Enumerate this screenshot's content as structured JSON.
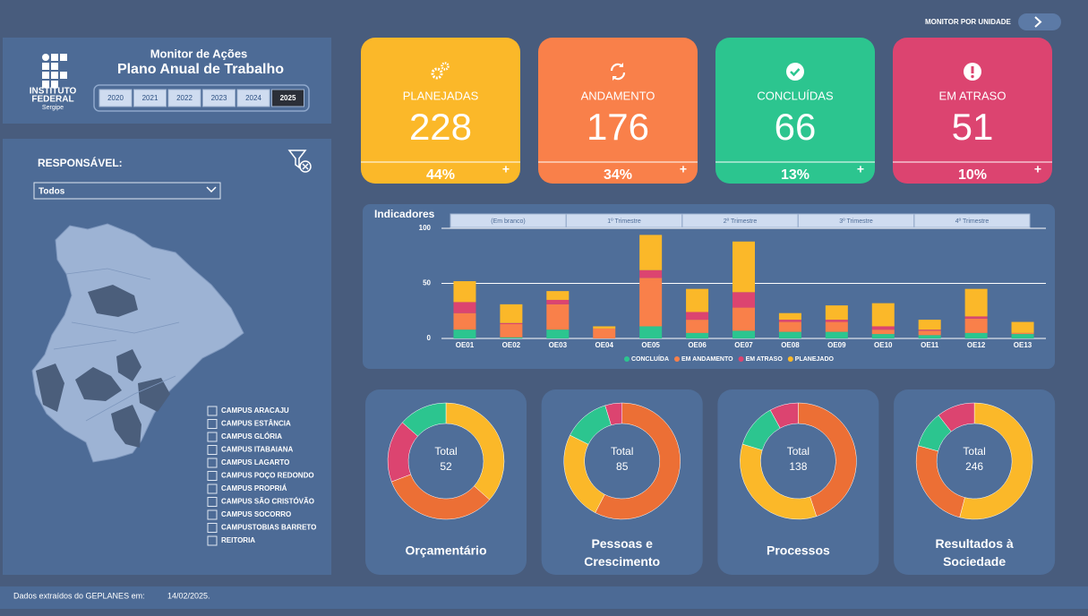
{
  "header": {
    "link": "MONITOR POR UNIDADE"
  },
  "brand": {
    "name1": "INSTITUTO",
    "name2": "FEDERAL",
    "name3": "Sergipe",
    "title": "Monitor de Ações",
    "subtitle": "Plano Anual de Trabalho",
    "years": [
      "2020",
      "2021",
      "2022",
      "2023",
      "2024",
      "2025"
    ]
  },
  "filter": {
    "label": "RESPONSÁVEL:",
    "dropdown": "Todos",
    "campuses": [
      "CAMPUS ARACAJU",
      "CAMPUS ESTÂNCIA",
      "CAMPUS GLÓRIA",
      "CAMPUS ITABAIANA",
      "CAMPUS LAGARTO",
      "CAMPUS POÇO REDONDO",
      "CAMPUS PROPRIÁ",
      "CAMPUS SÃO CRISTÓVÃO",
      "CAMPUS SOCORRO",
      "CAMPUSTOBIAS BARRETO",
      "REITORIA"
    ]
  },
  "kpis": [
    {
      "label": "PLANEJADAS",
      "value": 228,
      "percent": "44%",
      "color": "#fbb829"
    },
    {
      "label": "ANDAMENTO",
      "value": 176,
      "percent": "34%",
      "color": "#f9804a"
    },
    {
      "label": "CONCLUÍDAS",
      "value": 66,
      "percent": "13%",
      "color": "#2cc58f"
    },
    {
      "label": "EM ATRASO",
      "value": 51,
      "percent": "10%",
      "color": "#dc4470"
    }
  ],
  "kpi_expand": "+",
  "indicators_tabs": [
    "(Em branco)",
    "1º Trimestre",
    "2º Trimestre",
    "3º Trimestre",
    "4º Trimestre"
  ],
  "chart_data": [
    {
      "type": "stacked-bar",
      "title": "Indicadores",
      "categories": [
        "OE01",
        "OE02",
        "OE03",
        "OE04",
        "OE05",
        "OE06",
        "OE07",
        "OE08",
        "OE09",
        "OE10",
        "OE11",
        "OE12",
        "OE13"
      ],
      "series": [
        {
          "name": "CONCLUÍDA",
          "color": "#2cc58f",
          "values": [
            8,
            1,
            8,
            0,
            11,
            5,
            7,
            6,
            6,
            4,
            3,
            5,
            4
          ]
        },
        {
          "name": "EM ANDAMENTO",
          "color": "#f9804a",
          "values": [
            15,
            12,
            23,
            9,
            44,
            12,
            21,
            9,
            9,
            4,
            4,
            13,
            1
          ]
        },
        {
          "name": "EM ATRASO",
          "color": "#dc4470",
          "values": [
            10,
            1,
            4,
            0,
            7,
            7,
            14,
            2,
            2,
            3,
            1,
            2,
            0
          ]
        },
        {
          "name": "PLANEJADO",
          "color": "#fbb829",
          "values": [
            19,
            17,
            8,
            2,
            32,
            21,
            46,
            6,
            13,
            21,
            9,
            25,
            10
          ]
        }
      ],
      "ylim": [
        0,
        100
      ],
      "yticks": [
        0,
        50,
        100
      ],
      "grid": true
    },
    {
      "type": "donut",
      "title": "Orçamentário",
      "center_label": "Total",
      "total": 52,
      "values": [
        19,
        17,
        9,
        7
      ],
      "colors": [
        "#fbb829",
        "#ec6f35",
        "#dc4470",
        "#2cc58f"
      ]
    },
    {
      "type": "donut",
      "title": "Pessoas e Crescimento",
      "center_label": "Total",
      "total": 85,
      "values": [
        49,
        21,
        11,
        4
      ],
      "colors": [
        "#ec6f35",
        "#fbb829",
        "#2cc58f",
        "#dc4470"
      ]
    },
    {
      "type": "donut",
      "title": "Processos",
      "center_label": "Total",
      "total": 138,
      "values": [
        62,
        48,
        17,
        11
      ],
      "colors": [
        "#ec6f35",
        "#fbb829",
        "#2cc58f",
        "#dc4470"
      ]
    },
    {
      "type": "donut",
      "title": "Resultados à Sociedade",
      "center_label": "Total",
      "total": 246,
      "values": [
        133,
        62,
        25,
        26
      ],
      "colors": [
        "#fbb829",
        "#ec6f35",
        "#2cc58f",
        "#dc4470"
      ]
    }
  ],
  "footer": {
    "label": "Dados extraídos do GEPLANES em:",
    "date": "14/02/2025."
  }
}
